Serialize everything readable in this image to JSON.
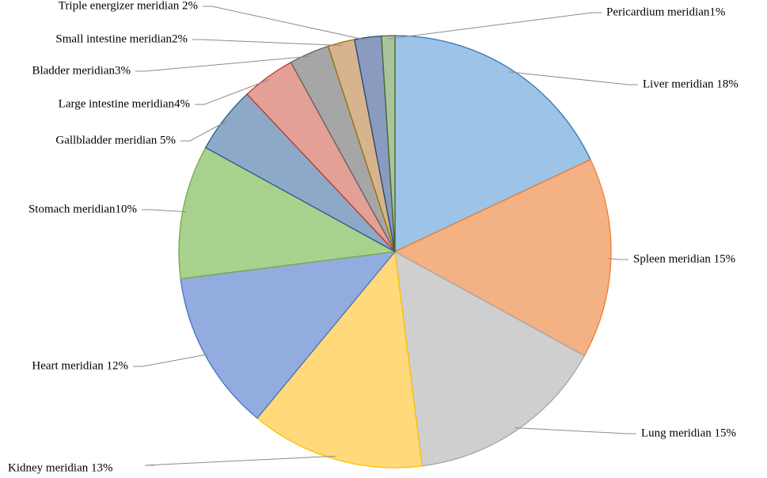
{
  "chart_data": {
    "type": "pie",
    "value_labels": [
      "Liver meridian 18%",
      "Spleen meridian 15%",
      "Lung meridian 15%",
      "Kidney meridian 13%",
      "Heart meridian 12%",
      "Stomach meridian10%",
      "Gallbladder meridian 5%",
      "Large intestine meridian4%",
      "Bladder meridian3%",
      "Small intestine meridian2%",
      "Triple energizer meridian 2%",
      "Pericardium meridian1%"
    ],
    "values": [
      18,
      15,
      15,
      13,
      12,
      10,
      5,
      4,
      3,
      2,
      2,
      1
    ],
    "colors": [
      "#9dc3e6",
      "#f4b183",
      "#cfcfcf",
      "#ffd97a",
      "#93acdf",
      "#a9d18e",
      "#8ea9c8",
      "#e2a096",
      "#a6a6a6",
      "#d6b48e",
      "#8a9bbf",
      "#a9c49a"
    ],
    "edge_colors": [
      "#2e75b6",
      "#ed7d31",
      "#a5a5a5",
      "#ffc000",
      "#4472c4",
      "#70ad47",
      "#255e91",
      "#c0392b",
      "#636363",
      "#997300",
      "#264478",
      "#43682b"
    ]
  }
}
